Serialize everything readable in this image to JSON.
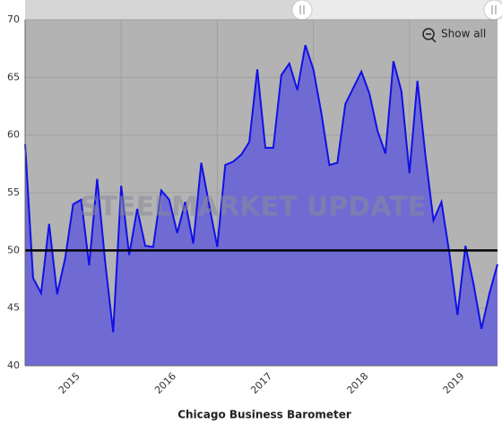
{
  "chart_data": {
    "type": "area",
    "title": "Chicago Business Barometer",
    "watermark": "STEELMARKET UPDATE",
    "button": "Show all",
    "categories": [
      null,
      null,
      null,
      null,
      null,
      null,
      "2015",
      null,
      null,
      null,
      null,
      null,
      null,
      null,
      null,
      null,
      null,
      null,
      "2016",
      null,
      null,
      null,
      null,
      null,
      null,
      null,
      null,
      null,
      null,
      null,
      "2017",
      null,
      null,
      null,
      null,
      null,
      null,
      null,
      null,
      null,
      null,
      null,
      "2018",
      null,
      null,
      null,
      null,
      null,
      null,
      null,
      null,
      null,
      null,
      null,
      "2019",
      null,
      null,
      null,
      null,
      null
    ],
    "series": [
      {
        "name": "Chicago Business Barometer",
        "color": "#1010e8",
        "fill": "#6f6bd3",
        "values": [
          59.2,
          47.6,
          46.3,
          52.3,
          46.2,
          49.3,
          54.0,
          54.4,
          48.7,
          56.2,
          49.0,
          42.9,
          55.6,
          49.6,
          53.6,
          50.4,
          50.3,
          55.2,
          54.4,
          51.5,
          54.2,
          50.6,
          57.6,
          53.9,
          50.3,
          57.4,
          57.7,
          58.3,
          59.4,
          65.7,
          58.9,
          58.9,
          65.2,
          66.2,
          63.9,
          67.8,
          65.7,
          61.9,
          57.4,
          57.6,
          62.7,
          64.1,
          65.5,
          63.6,
          60.4,
          58.4,
          66.4,
          63.8,
          56.7,
          64.7,
          58.2,
          52.6,
          54.2,
          49.7,
          44.4,
          50.4,
          47.1,
          43.2,
          46.3,
          48.8
        ]
      }
    ],
    "reference_line": 50,
    "ylim": [
      40,
      70
    ],
    "yticks": [
      40,
      45,
      50,
      55,
      60,
      65,
      70
    ],
    "grid": true
  }
}
